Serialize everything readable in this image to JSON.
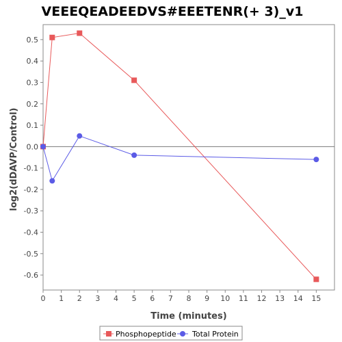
{
  "chart_data": {
    "type": "line",
    "title": "VEEEQEADEEDVS#EEETENR(+ 3)_v1",
    "xlabel": "Time (minutes)",
    "ylabel": "log2(dDAVP/Control)",
    "xlim": [
      0,
      16
    ],
    "ylim": [
      -0.67,
      0.57
    ],
    "xticks": [
      0,
      1,
      2,
      3,
      4,
      5,
      6,
      7,
      8,
      9,
      10,
      11,
      12,
      13,
      14,
      15
    ],
    "yticks": [
      -0.6,
      -0.5,
      -0.4,
      -0.3,
      -0.2,
      -0.1,
      0.0,
      0.1,
      0.2,
      0.3,
      0.4,
      0.5
    ],
    "ytick_labels": [
      "-0.6",
      "-0.5",
      "-0.4",
      "-0.3",
      "-0.2",
      "-0.1",
      "0.0",
      "0.1",
      "0.2",
      "0.3",
      "0.4",
      "0.5"
    ],
    "zero_line": true,
    "grid": false,
    "legend_position": "bottom",
    "series": [
      {
        "name": "Phosphopeptide",
        "color": "#e8595a",
        "marker": "square",
        "x": [
          0,
          0.5,
          2,
          5,
          15
        ],
        "y": [
          0.0,
          0.51,
          0.53,
          0.31,
          -0.62
        ]
      },
      {
        "name": "Total Protein",
        "color": "#5b5be6",
        "marker": "circle",
        "x": [
          0,
          0.5,
          2,
          5,
          15
        ],
        "y": [
          0.0,
          -0.16,
          0.05,
          -0.04,
          -0.06
        ]
      }
    ]
  }
}
